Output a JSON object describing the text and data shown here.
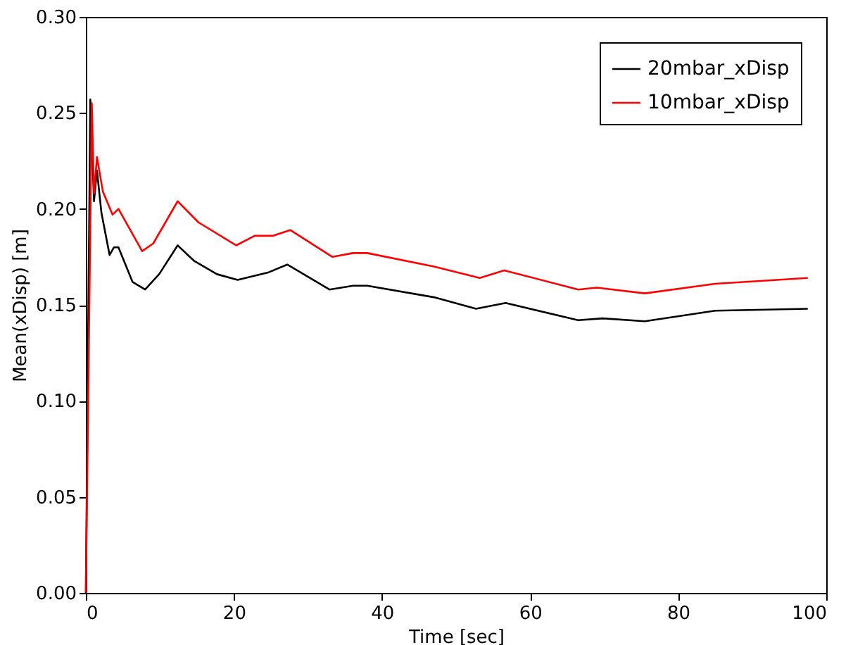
{
  "chart_data": {
    "type": "line",
    "xlabel": "Time [sec]",
    "ylabel": "Mean(xDisp) [m]",
    "xlim": [
      0,
      100
    ],
    "ylim": [
      0,
      0.3
    ],
    "xticks": [
      0,
      20,
      40,
      60,
      80,
      100
    ],
    "yticks": [
      {
        "value": 0,
        "label": "0.00"
      },
      {
        "value": 0.05,
        "label": "0.05"
      },
      {
        "value": 0.1,
        "label": "0.10"
      },
      {
        "value": 0.15,
        "label": "0.15"
      },
      {
        "value": 0.2,
        "label": "0.20"
      },
      {
        "value": 0.25,
        "label": "0.25"
      },
      {
        "value": 0.3,
        "label": "0.30"
      }
    ],
    "grid": false,
    "legend": "top right",
    "marker": "none",
    "line_style": "solid",
    "series": [
      {
        "name": "20mbar_xDisp",
        "color": "#000000",
        "x": [
          0,
          0.6,
          1.1,
          1.5,
          2.1,
          3.2,
          3.8,
          4.4,
          6.3,
          8.0,
          9.9,
          12.4,
          14.6,
          17.7,
          20.5,
          24.7,
          27.2,
          32.9,
          36.1,
          38,
          47,
          52.7,
          56.7,
          66.5,
          69.8,
          75.5,
          85,
          97.5
        ],
        "values": [
          0,
          0.257,
          0.204,
          0.22,
          0.198,
          0.176,
          0.18,
          0.18,
          0.162,
          0.158,
          0.166,
          0.181,
          0.173,
          0.166,
          0.163,
          0.167,
          0.171,
          0.158,
          0.16,
          0.16,
          0.154,
          0.148,
          0.151,
          0.142,
          0.143,
          0.1415,
          0.147,
          0.148
        ]
      },
      {
        "name": "10mbar_xDisp",
        "color": "#ff0000",
        "x": [
          0,
          0.8,
          1.1,
          1.5,
          2.3,
          3.6,
          4.4,
          7.6,
          9.1,
          12.4,
          15.2,
          20.3,
          22.8,
          25.3,
          27.6,
          33.3,
          36.1,
          38,
          47,
          53.2,
          56.5,
          66.5,
          69,
          75.5,
          85,
          97.5
        ],
        "values": [
          0,
          0.255,
          0.208,
          0.227,
          0.209,
          0.197,
          0.2,
          0.178,
          0.182,
          0.204,
          0.193,
          0.181,
          0.186,
          0.186,
          0.189,
          0.175,
          0.177,
          0.177,
          0.17,
          0.164,
          0.168,
          0.158,
          0.159,
          0.156,
          0.161,
          0.164
        ]
      }
    ]
  }
}
